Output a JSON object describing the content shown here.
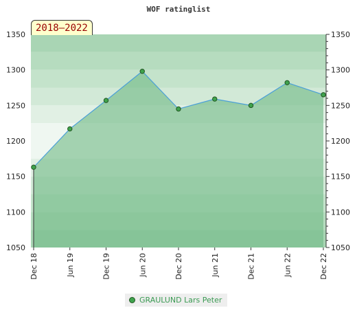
{
  "chart_data": {
    "type": "area",
    "title": "WOF ratinglist",
    "period": "2018–2022",
    "x": [
      "Dec 18",
      "Jun 19",
      "Dec 19",
      "Jun 20",
      "Dec 20",
      "Jun 21",
      "Dec 21",
      "Jun 22",
      "Dec 22"
    ],
    "series": [
      {
        "name": "GRAULUND Lars Peter",
        "values": [
          1163,
          1217,
          1257,
          1298,
          1245,
          1259,
          1250,
          1282,
          1265
        ]
      }
    ],
    "ylim": [
      1050,
      1350
    ],
    "yticks": [
      1050,
      1100,
      1150,
      1200,
      1250,
      1300,
      1350
    ],
    "grid": true,
    "legend": "bottom-center"
  },
  "colors": {
    "line": "#4a9fd8",
    "fill": "#6fb985",
    "marker_fill": "#3fa34d",
    "marker_stroke": "#225522",
    "legend_text": "#3a9a52"
  }
}
